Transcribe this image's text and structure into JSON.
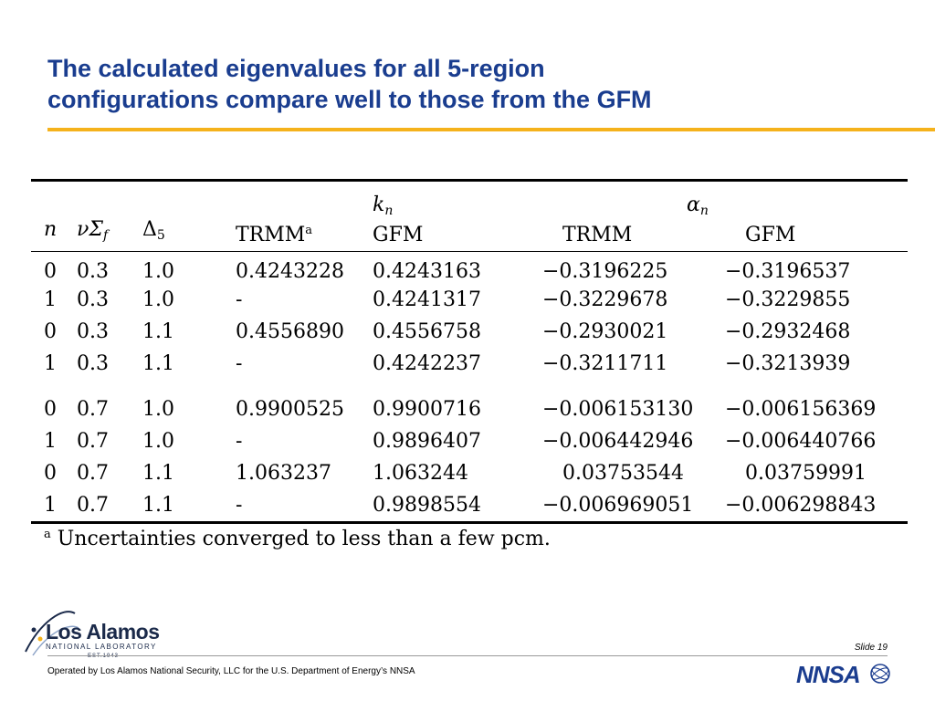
{
  "slide": {
    "title_line1": "The calculated eigenvalues for all 5-region",
    "title_line2": "configurations compare well to those from the GFM",
    "slide_number": "Slide 19",
    "footer": "Operated by Los Alamos National Security, LLC for the U.S. Department of Energy’s NNSA",
    "accent_color": "#f5b21c",
    "title_color": "#1a3d8f"
  },
  "logo": {
    "name": "Los Alamos",
    "subtitle": "NATIONAL LABORATORY",
    "est": "EST.1943"
  },
  "nnsa_logo": {
    "text": "NNSA"
  },
  "table": {
    "group_headers": {
      "k": "k",
      "k_sub": "n",
      "alpha": "α",
      "alpha_sub": "n"
    },
    "col_n": "n",
    "col_nu": "νΣ",
    "col_nu_sub": "f",
    "col_delta": "Δ",
    "col_delta_sub": "5",
    "col_trmm_k": "TRMM",
    "col_trmm_k_sup": "a",
    "col_gfm_k": "GFM",
    "col_trmm_a": "TRMM",
    "col_gfm_a": "GFM",
    "rows": [
      [
        "0",
        "0.3",
        "1.0",
        "0.4243228",
        "0.4243163",
        "−0.3196225",
        "−0.3196537"
      ],
      [
        "1",
        "0.3",
        "1.0",
        "-",
        "0.4241317",
        "−0.3229678",
        "−0.3229855"
      ],
      [
        "0",
        "0.3",
        "1.1",
        "0.4556890",
        "0.4556758",
        "−0.2930021",
        "−0.2932468"
      ],
      [
        "1",
        "0.3",
        "1.1",
        "-",
        "0.4242237",
        "−0.3211711",
        "−0.3213939"
      ],
      [
        "0",
        "0.7",
        "1.0",
        "0.9900525",
        "0.9900716",
        "−0.006153130",
        "−0.006156369"
      ],
      [
        "1",
        "0.7",
        "1.0",
        "-",
        "0.9896407",
        "−0.006442946",
        "−0.006440766"
      ],
      [
        "0",
        "0.7",
        "1.1",
        "1.063237",
        "1.063244",
        " 0.03753544",
        " 0.03759991"
      ],
      [
        "1",
        "0.7",
        "1.1",
        "-",
        "0.9898554",
        "−0.006969051",
        "−0.006298843"
      ]
    ],
    "footnote_mark": "a",
    "footnote": "Uncertainties converged to less than a few pcm."
  }
}
